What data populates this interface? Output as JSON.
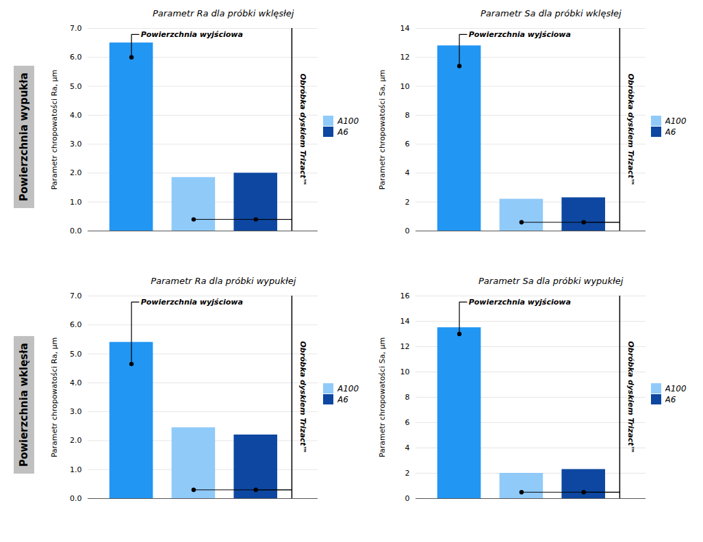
{
  "row_labels": [
    {
      "text": "Powierzchnia wypukła",
      "color": "#C0C0C0"
    },
    {
      "text": "Powierzchnia wklęsła",
      "color": "#C0C0C0"
    }
  ],
  "chart_data": [
    {
      "type": "bar",
      "title": "Parametr Ra dla próbki wklęsłej",
      "y_label": "Parametr chropowatości Ra, μm",
      "categories": [
        null,
        null,
        null
      ],
      "values": [
        6.5,
        1.85,
        2.0
      ],
      "colors": [
        "#2196F3",
        "#90CAF9",
        "#0D47A1"
      ],
      "dots": [
        6.0,
        0.4,
        0.4
      ],
      "ylim": [
        0,
        7
      ],
      "yticks": [
        0,
        1,
        2,
        3,
        4,
        5,
        6,
        7
      ],
      "grid": true,
      "tick_labels": "y",
      "annotation": "Powierzchnia wyjściowa",
      "bracket_label": "Obróbka dyskiem Trizact™",
      "legend": "right",
      "legend_entries": [
        {
          "name": "A100",
          "color": "#90CAF9"
        },
        {
          "name": "A6",
          "color": "#0D47A1"
        }
      ]
    },
    {
      "type": "bar",
      "title": "Parametr Sa dla próbki wklęsłej",
      "y_label": "Parametr chropowatości Sa, μm",
      "categories": [
        null,
        null,
        null
      ],
      "values": [
        12.8,
        2.2,
        2.3
      ],
      "colors": [
        "#2196F3",
        "#90CAF9",
        "#0D47A1"
      ],
      "dots": [
        11.4,
        0.6,
        0.6
      ],
      "ylim": [
        0,
        14
      ],
      "yticks": [
        0,
        2,
        4,
        6,
        8,
        10,
        12,
        14
      ],
      "grid": true,
      "tick_labels": "y",
      "annotation": "Powierzchnia wyjściowa",
      "bracket_label": "Obróbka dyskiem Trizact™",
      "legend": "right",
      "legend_entries": [
        {
          "name": "A100",
          "color": "#90CAF9"
        },
        {
          "name": "A6",
          "color": "#0D47A1"
        }
      ]
    },
    {
      "type": "bar",
      "title": "Parametr Ra dla próbki wypukłej",
      "y_label": "Parametr chropowatości Ra, μm",
      "categories": [
        null,
        null,
        null
      ],
      "values": [
        5.4,
        2.45,
        2.2
      ],
      "colors": [
        "#2196F3",
        "#90CAF9",
        "#0D47A1"
      ],
      "dots": [
        4.65,
        0.3,
        0.3
      ],
      "ylim": [
        0,
        7
      ],
      "yticks": [
        0,
        1,
        2,
        3,
        4,
        5,
        6,
        7
      ],
      "grid": true,
      "tick_labels": "y",
      "annotation": "Powierzchnia wyjściowa",
      "bracket_label": "Obróbka dyskiem Trizact™",
      "legend": "right",
      "legend_entries": [
        {
          "name": "A100",
          "color": "#90CAF9"
        },
        {
          "name": "A6",
          "color": "#0D47A1"
        }
      ]
    },
    {
      "type": "bar",
      "title": "Parametr Sa dla próbki wypukłej",
      "y_label": "Parametr chropowatości Sa, μm",
      "categories": [
        null,
        null,
        null
      ],
      "values": [
        13.5,
        2.0,
        2.3
      ],
      "colors": [
        "#2196F3",
        "#90CAF9",
        "#0D47A1"
      ],
      "dots": [
        13.0,
        0.5,
        0.5
      ],
      "ylim": [
        0,
        16
      ],
      "yticks": [
        0,
        2,
        4,
        6,
        8,
        10,
        12,
        14,
        16
      ],
      "grid": true,
      "tick_labels": "y",
      "annotation": "Powierzchnia wyjściowa",
      "bracket_label": "Obróbka dyskiem Trizact™",
      "legend": "right",
      "legend_entries": [
        {
          "name": "A100",
          "color": "#90CAF9"
        },
        {
          "name": "A6",
          "color": "#0D47A1"
        }
      ]
    }
  ]
}
